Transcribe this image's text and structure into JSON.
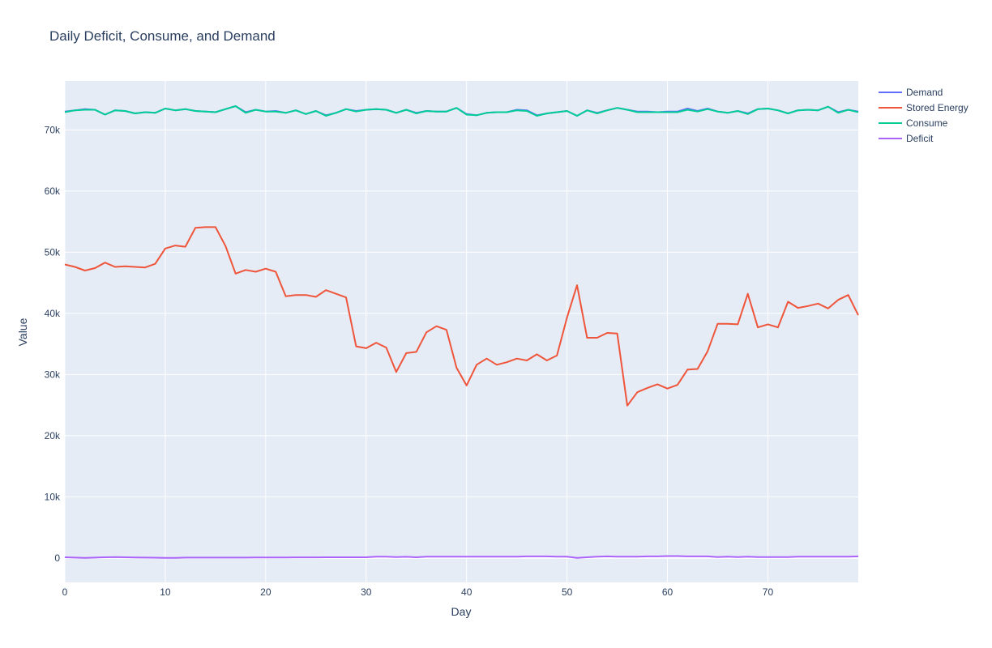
{
  "chart_data": {
    "type": "line",
    "title": "Daily Deficit, Consume, and Demand",
    "xlabel": "Day",
    "ylabel": "Value",
    "xlim": [
      0,
      79
    ],
    "ylim": [
      -4000,
      78000
    ],
    "x_ticks": [
      0,
      10,
      20,
      30,
      40,
      50,
      60,
      70
    ],
    "y_ticks": [
      0,
      10000,
      20000,
      30000,
      40000,
      50000,
      60000,
      70000
    ],
    "y_tick_labels": [
      "0",
      "10k",
      "20k",
      "30k",
      "40k",
      "50k",
      "60k",
      "70k"
    ],
    "legend_position": "top-right",
    "grid": true,
    "colors": {
      "plot_bg": "#E5ECF6",
      "grid": "#ffffff"
    },
    "x": [
      0,
      1,
      2,
      3,
      4,
      5,
      6,
      7,
      8,
      9,
      10,
      11,
      12,
      13,
      14,
      15,
      16,
      17,
      18,
      19,
      20,
      21,
      22,
      23,
      24,
      25,
      26,
      27,
      28,
      29,
      30,
      31,
      32,
      33,
      34,
      35,
      36,
      37,
      38,
      39,
      40,
      41,
      42,
      43,
      44,
      45,
      46,
      47,
      48,
      49,
      50,
      51,
      52,
      53,
      54,
      55,
      56,
      57,
      58,
      59,
      60,
      61,
      62,
      63,
      64,
      65,
      66,
      67,
      68,
      69,
      70,
      71,
      72,
      73,
      74,
      75,
      76,
      77,
      78,
      79
    ],
    "series": [
      {
        "name": "Demand",
        "color": "#636EFA",
        "values": [
          73000,
          73200,
          73400,
          73300,
          72500,
          73200,
          73100,
          72700,
          72900,
          72800,
          73500,
          73200,
          73400,
          73100,
          73000,
          72900,
          73400,
          73900,
          72900,
          73300,
          73000,
          73100,
          72800,
          73200,
          72600,
          73100,
          72400,
          72800,
          73400,
          73100,
          73300,
          73400,
          73300,
          72800,
          73300,
          72800,
          73100,
          73000,
          73000,
          73600,
          72600,
          72400,
          72800,
          72900,
          72900,
          73300,
          73200,
          72400,
          72700,
          72900,
          73100,
          72300,
          73200,
          72800,
          73200,
          73600,
          73300,
          73000,
          73000,
          72900,
          73000,
          73000,
          73500,
          73100,
          73500,
          73000,
          72800,
          73100,
          72700,
          73400,
          73500,
          73200,
          72700,
          73200,
          73300,
          73200,
          73800,
          72900,
          73300,
          73000
        ]
      },
      {
        "name": "Stored Energy",
        "color": "#EF553B",
        "values": [
          48000,
          47600,
          47000,
          47400,
          48300,
          47600,
          47700,
          47600,
          47500,
          48100,
          50600,
          51100,
          50900,
          54000,
          54100,
          54100,
          51000,
          46500,
          47100,
          46800,
          47300,
          46800,
          42800,
          43000,
          43000,
          42700,
          43800,
          43200,
          42600,
          34600,
          34300,
          35200,
          34400,
          30400,
          33500,
          33700,
          36900,
          37900,
          37300,
          31100,
          28200,
          31600,
          32600,
          31600,
          32000,
          32600,
          32300,
          33300,
          32300,
          33100,
          39300,
          44600,
          36000,
          36000,
          36800,
          36700,
          24900,
          27100,
          27800,
          28400,
          27700,
          28300,
          30800,
          30900,
          33800,
          38300,
          38300,
          38200,
          43200,
          37700,
          38200,
          37700,
          41900,
          40900,
          41200,
          41600,
          40800,
          42200,
          43000,
          39700
        ]
      },
      {
        "name": "Consume",
        "color": "#00CC96",
        "values": [
          72900,
          73200,
          73300,
          73300,
          72500,
          73200,
          73100,
          72700,
          72900,
          72800,
          73500,
          73200,
          73400,
          73100,
          73000,
          72900,
          73400,
          73900,
          72800,
          73300,
          73000,
          73000,
          72800,
          73200,
          72600,
          73100,
          72300,
          72800,
          73400,
          73000,
          73300,
          73400,
          73300,
          72800,
          73300,
          72700,
          73100,
          73000,
          73000,
          73600,
          72500,
          72400,
          72800,
          72900,
          72900,
          73200,
          73100,
          72300,
          72700,
          72900,
          73100,
          72300,
          73200,
          72700,
          73200,
          73600,
          73300,
          72900,
          72900,
          72900,
          72900,
          72900,
          73300,
          73000,
          73400,
          73000,
          72800,
          73100,
          72600,
          73400,
          73500,
          73200,
          72700,
          73200,
          73300,
          73200,
          73800,
          72800,
          73300,
          72900
        ]
      },
      {
        "name": "Deficit",
        "color": "#AB63FA",
        "values": [
          100,
          50,
          0,
          50,
          100,
          150,
          100,
          80,
          60,
          40,
          20,
          0,
          50,
          60,
          60,
          50,
          50,
          50,
          60,
          70,
          80,
          80,
          80,
          90,
          90,
          90,
          100,
          100,
          100,
          100,
          100,
          200,
          200,
          150,
          180,
          100,
          200,
          200,
          200,
          200,
          200,
          200,
          200,
          200,
          200,
          200,
          250,
          250,
          250,
          200,
          200,
          20,
          100,
          200,
          250,
          200,
          200,
          200,
          250,
          250,
          300,
          300,
          250,
          250,
          250,
          150,
          200,
          150,
          200,
          150,
          150,
          150,
          150,
          200,
          200,
          200,
          200,
          200,
          200,
          250
        ]
      }
    ]
  }
}
